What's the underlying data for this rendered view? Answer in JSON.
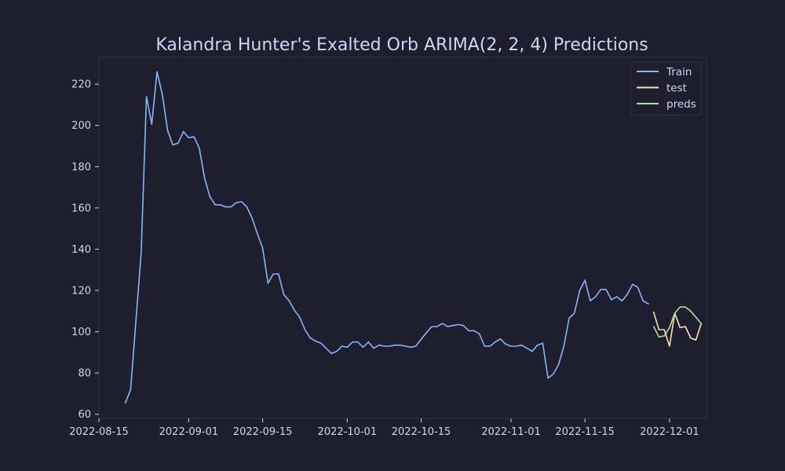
{
  "chart_data": {
    "type": "line",
    "title": "Kalandra Hunter's Exalted Orb ARIMA(2, 2, 4) Predictions",
    "xlabel": "",
    "ylabel": "",
    "x_ticks": [
      "2022-08-15",
      "2022-09-01",
      "2022-09-15",
      "2022-10-01",
      "2022-10-15",
      "2022-11-01",
      "2022-11-15",
      "2022-12-01"
    ],
    "y_ticks": [
      "60",
      "80",
      "100",
      "120",
      "140",
      "160",
      "180",
      "200",
      "220"
    ],
    "xlim": [
      "2022-08-15",
      "2022-12-08"
    ],
    "ylim": [
      58,
      233
    ],
    "grid": false,
    "legend_position": "top-right",
    "background_color": "#1e1e2e",
    "axes_color": "#313244",
    "text_color": "#cdd6f4",
    "series": [
      {
        "name": "Train",
        "color": "#89b4fa",
        "points": [
          [
            "2022-08-20",
            65.5
          ],
          [
            "2022-08-21",
            72
          ],
          [
            "2022-08-22",
            105
          ],
          [
            "2022-08-23",
            138
          ],
          [
            "2022-08-24",
            214
          ],
          [
            "2022-08-25",
            200.5
          ],
          [
            "2022-08-26",
            226
          ],
          [
            "2022-08-27",
            215
          ],
          [
            "2022-08-28",
            197.5
          ],
          [
            "2022-08-29",
            190.5
          ],
          [
            "2022-08-30",
            191.5
          ],
          [
            "2022-08-31",
            197
          ],
          [
            "2022-09-01",
            194
          ],
          [
            "2022-09-02",
            194.5
          ],
          [
            "2022-09-03",
            189
          ],
          [
            "2022-09-04",
            174.5
          ],
          [
            "2022-09-05",
            165.5
          ],
          [
            "2022-09-06",
            161.5
          ],
          [
            "2022-09-07",
            161.5
          ],
          [
            "2022-09-08",
            160.5
          ],
          [
            "2022-09-09",
            160.5
          ],
          [
            "2022-09-10",
            162.5
          ],
          [
            "2022-09-11",
            163
          ],
          [
            "2022-09-12",
            160.5
          ],
          [
            "2022-09-13",
            155
          ],
          [
            "2022-09-14",
            147.5
          ],
          [
            "2022-09-15",
            140.5
          ],
          [
            "2022-09-16",
            123.5
          ],
          [
            "2022-09-17",
            128
          ],
          [
            "2022-09-18",
            128
          ],
          [
            "2022-09-19",
            118
          ],
          [
            "2022-09-20",
            115
          ],
          [
            "2022-09-21",
            110.5
          ],
          [
            "2022-09-22",
            107
          ],
          [
            "2022-09-23",
            101
          ],
          [
            "2022-09-24",
            97
          ],
          [
            "2022-09-25",
            95.5
          ],
          [
            "2022-09-26",
            94.5
          ],
          [
            "2022-09-27",
            92
          ],
          [
            "2022-09-28",
            89.5
          ],
          [
            "2022-09-29",
            90.5
          ],
          [
            "2022-09-30",
            93
          ],
          [
            "2022-10-01",
            92.5
          ],
          [
            "2022-10-02",
            95
          ],
          [
            "2022-10-03",
            95
          ],
          [
            "2022-10-04",
            92.5
          ],
          [
            "2022-10-05",
            95
          ],
          [
            "2022-10-06",
            92
          ],
          [
            "2022-10-07",
            93.5
          ],
          [
            "2022-10-08",
            93
          ],
          [
            "2022-10-09",
            93
          ],
          [
            "2022-10-10",
            93.5
          ],
          [
            "2022-10-11",
            93.5
          ],
          [
            "2022-10-12",
            93
          ],
          [
            "2022-10-13",
            92.5
          ],
          [
            "2022-10-14",
            93
          ],
          [
            "2022-10-15",
            96.5
          ],
          [
            "2022-10-16",
            99.5
          ],
          [
            "2022-10-17",
            102.5
          ],
          [
            "2022-10-18",
            102.5
          ],
          [
            "2022-10-19",
            104
          ],
          [
            "2022-10-20",
            102.5
          ],
          [
            "2022-10-21",
            103
          ],
          [
            "2022-10-22",
            103.5
          ],
          [
            "2022-10-23",
            103
          ],
          [
            "2022-10-24",
            100.5
          ],
          [
            "2022-10-25",
            100.5
          ],
          [
            "2022-10-26",
            99
          ],
          [
            "2022-10-27",
            93
          ],
          [
            "2022-10-28",
            93
          ],
          [
            "2022-10-29",
            95
          ],
          [
            "2022-10-30",
            96.5
          ],
          [
            "2022-10-31",
            94
          ],
          [
            "2022-11-01",
            93
          ],
          [
            "2022-11-02",
            93
          ],
          [
            "2022-11-03",
            93.5
          ],
          [
            "2022-11-04",
            92
          ],
          [
            "2022-11-05",
            90.5
          ],
          [
            "2022-11-06",
            93.5
          ],
          [
            "2022-11-07",
            94.5
          ],
          [
            "2022-11-08",
            77.5
          ],
          [
            "2022-11-09",
            79.5
          ],
          [
            "2022-11-10",
            84
          ],
          [
            "2022-11-11",
            93
          ],
          [
            "2022-11-12",
            106.5
          ],
          [
            "2022-11-13",
            109
          ],
          [
            "2022-11-14",
            120
          ],
          [
            "2022-11-15",
            125
          ],
          [
            "2022-11-16",
            115
          ],
          [
            "2022-11-17",
            117
          ],
          [
            "2022-11-18",
            120.5
          ],
          [
            "2022-11-19",
            120.5
          ],
          [
            "2022-11-20",
            115.5
          ],
          [
            "2022-11-21",
            117
          ],
          [
            "2022-11-22",
            115
          ],
          [
            "2022-11-23",
            118
          ],
          [
            "2022-11-24",
            123
          ],
          [
            "2022-11-25",
            121.5
          ],
          [
            "2022-11-26",
            115
          ],
          [
            "2022-11-27",
            113.5
          ]
        ]
      },
      {
        "name": "test",
        "color": "#f9e2af",
        "points": [
          [
            "2022-11-28",
            109.5
          ],
          [
            "2022-11-29",
            101
          ],
          [
            "2022-11-30",
            101
          ],
          [
            "2022-12-01",
            93
          ],
          [
            "2022-12-02",
            109
          ],
          [
            "2022-12-03",
            102
          ],
          [
            "2022-12-04",
            102.5
          ],
          [
            "2022-12-05",
            97
          ],
          [
            "2022-12-06",
            96
          ],
          [
            "2022-12-07",
            104
          ]
        ]
      },
      {
        "name": "preds",
        "color": "#a6e3a1",
        "points": [
          [
            "2022-11-28",
            102.5
          ],
          [
            "2022-11-29",
            97.5
          ],
          [
            "2022-11-30",
            98
          ],
          [
            "2022-12-01",
            102
          ],
          [
            "2022-12-02",
            109
          ],
          [
            "2022-12-03",
            112
          ],
          [
            "2022-12-04",
            112
          ],
          [
            "2022-12-05",
            110
          ],
          [
            "2022-12-06",
            107
          ],
          [
            "2022-12-07",
            104
          ]
        ]
      }
    ]
  }
}
